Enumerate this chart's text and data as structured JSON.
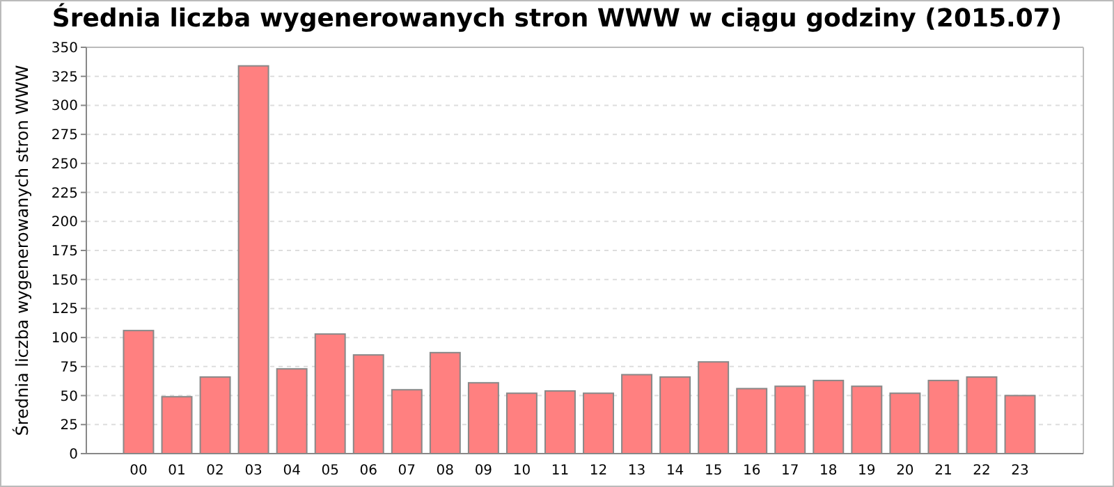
{
  "chart_data": {
    "type": "bar",
    "title": "Średnia liczba wygenerowanych stron WWW w ciągu godziny (2015.07)",
    "ylabel": "Średnia liczba wygenerowanych stron WWW",
    "categories": [
      "00",
      "01",
      "02",
      "03",
      "04",
      "05",
      "06",
      "07",
      "08",
      "09",
      "10",
      "11",
      "12",
      "13",
      "14",
      "15",
      "16",
      "17",
      "18",
      "19",
      "20",
      "21",
      "22",
      "23"
    ],
    "values": [
      106,
      49,
      66,
      334,
      73,
      103,
      85,
      55,
      87,
      61,
      52,
      54,
      52,
      68,
      66,
      79,
      56,
      58,
      63,
      58,
      52,
      63,
      66,
      50
    ],
    "color": "#ff8080",
    "ylim": [
      0,
      350
    ],
    "yticks": [
      0,
      25,
      50,
      75,
      100,
      125,
      150,
      175,
      200,
      225,
      250,
      275,
      300,
      325,
      350
    ],
    "grid": "y"
  }
}
